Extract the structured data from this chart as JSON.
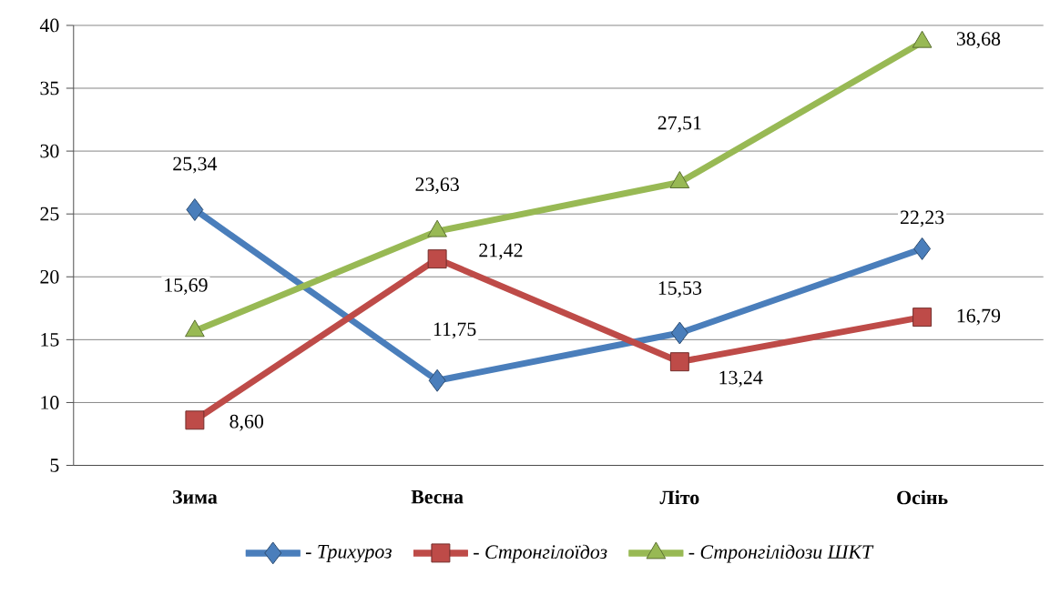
{
  "chart_data": {
    "type": "line",
    "categories": [
      "Зима",
      "Весна",
      "Літо",
      "Осінь"
    ],
    "series": [
      {
        "name": "- Трихуроз",
        "color": "#4a7ebb",
        "marker": "diamond",
        "values": [
          25.34,
          11.75,
          15.53,
          22.23
        ],
        "value_labels": [
          "25,34",
          "11,75",
          "15,53",
          "22,23"
        ]
      },
      {
        "name": "- Стронгілоїдоз",
        "color": "#be4b48",
        "marker": "square",
        "values": [
          8.6,
          21.42,
          13.24,
          16.79
        ],
        "value_labels": [
          "8,60",
          "21,42",
          "13,24",
          "16,79"
        ]
      },
      {
        "name": "- Стронгілідози ШКТ",
        "color": "#98b954",
        "marker": "triangle",
        "values": [
          15.69,
          23.63,
          27.51,
          38.68
        ],
        "value_labels": [
          "15,69",
          "23,63",
          "27,51",
          "38,68"
        ]
      }
    ],
    "ylim": [
      5,
      40
    ],
    "yticks": [
      5,
      10,
      15,
      20,
      25,
      30,
      35,
      40
    ],
    "grid": "y",
    "legend": "bottom",
    "line_style": "solid"
  }
}
